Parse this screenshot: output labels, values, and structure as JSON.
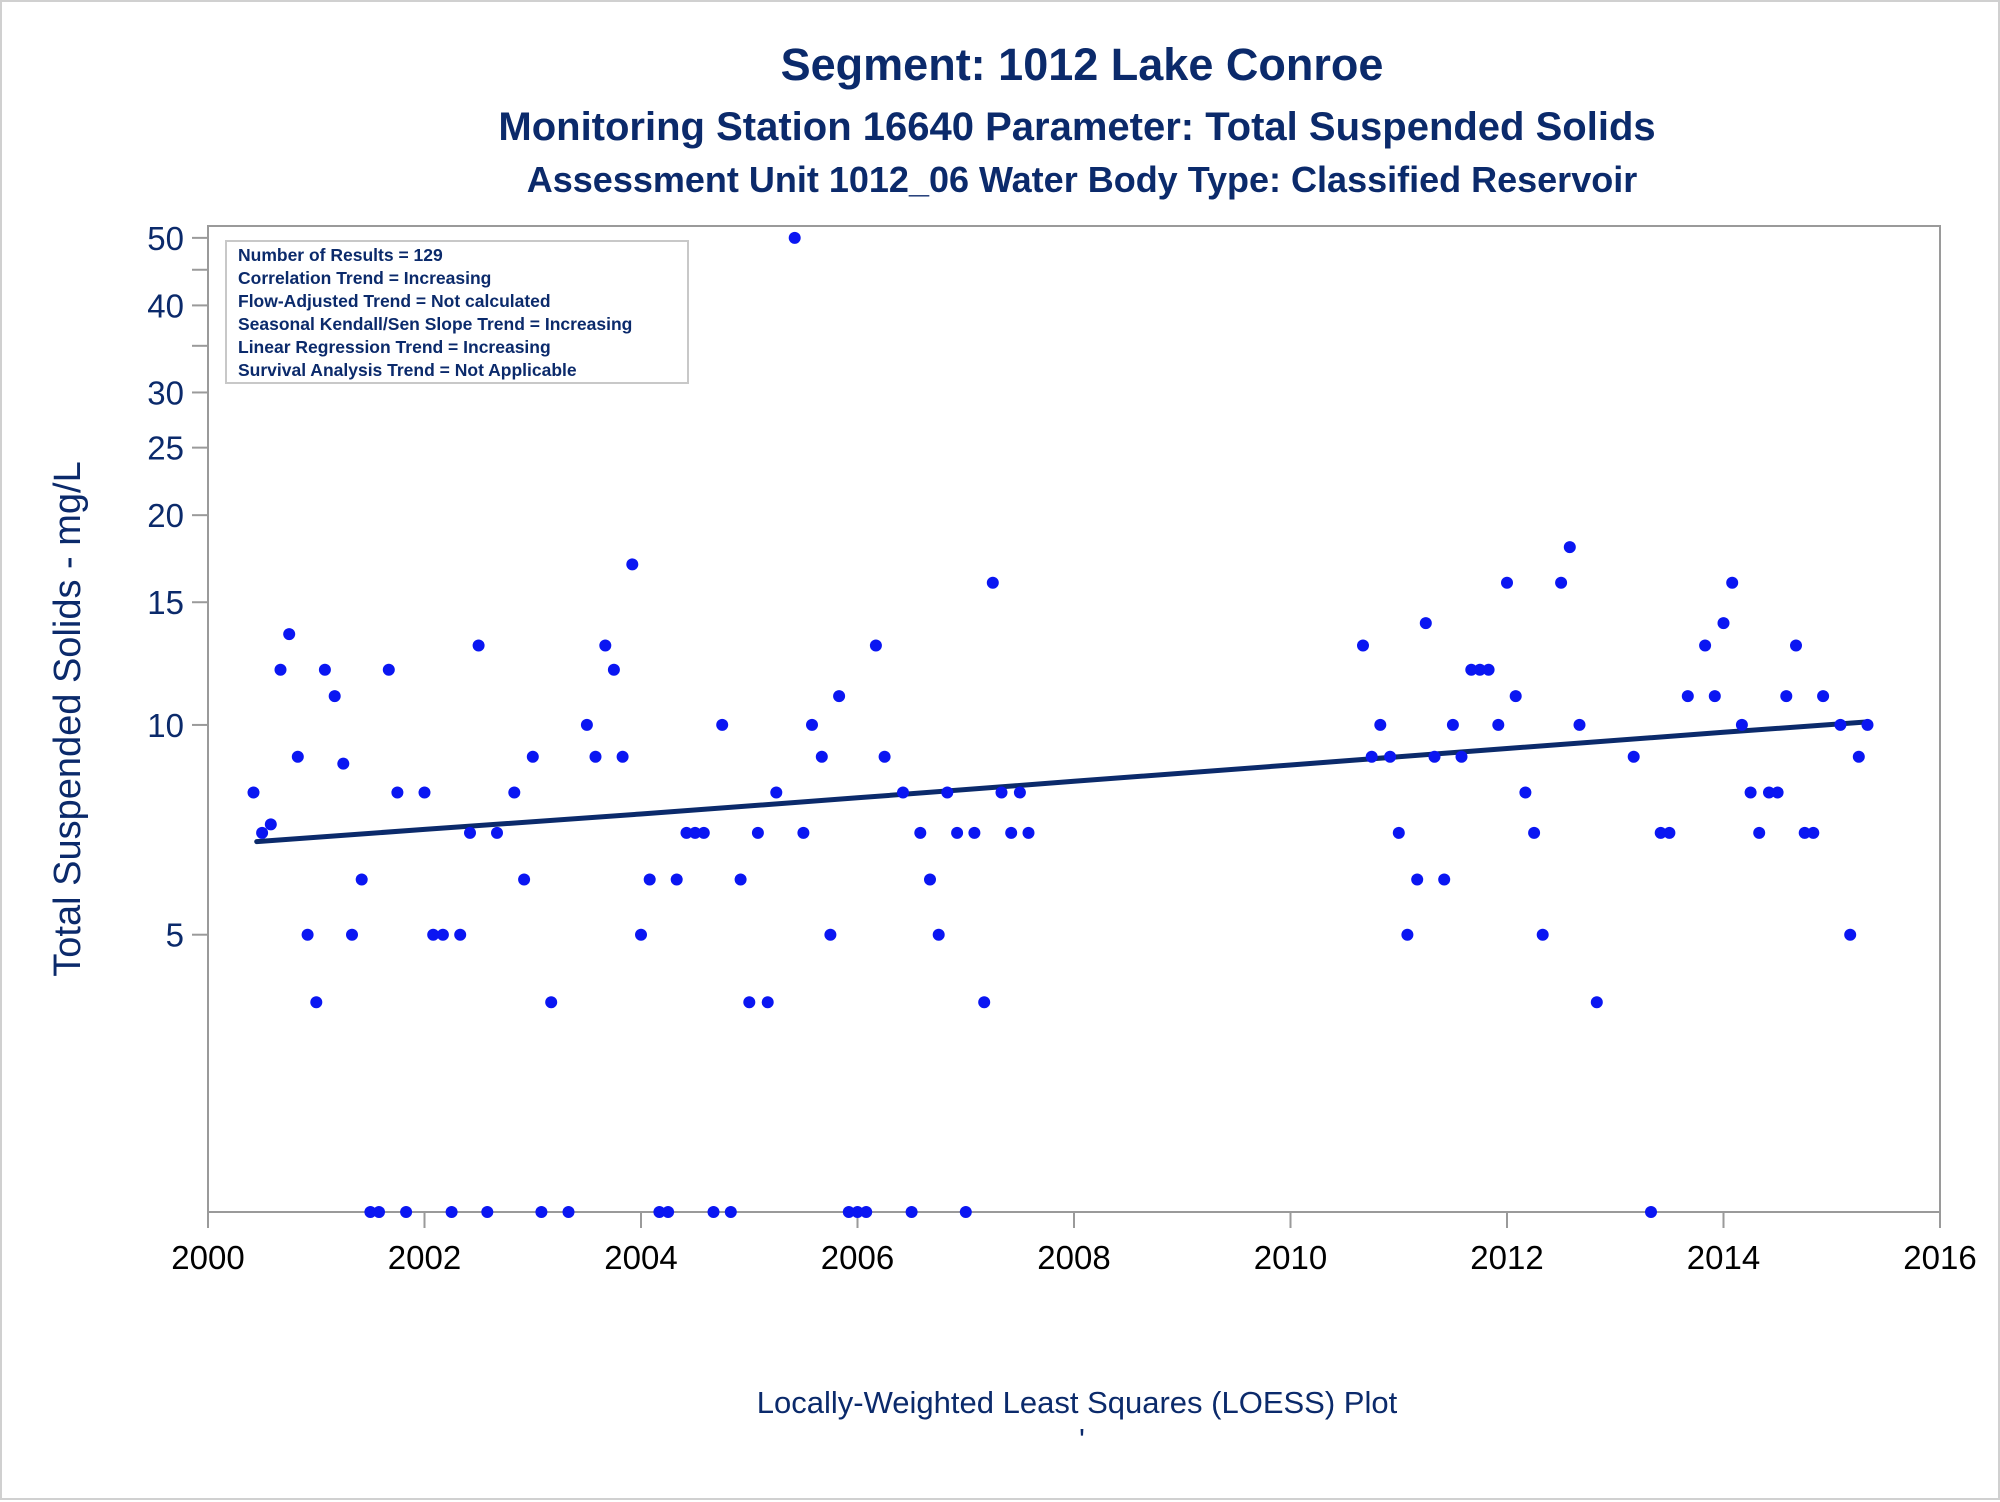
{
  "chart_data": {
    "type": "scatter",
    "title": "Segment: 1012  Lake Conroe",
    "subtitle": "Monitoring Station 16640 Parameter: Total Suspended Solids",
    "subtitle2": "Assessment Unit 1012_06   Water Body Type: Classified Reservoir",
    "xlabel": "",
    "ylabel": "Total Suspended Solids - mg/L",
    "footnote": "Locally-Weighted Least Squares (LOESS) Plot",
    "footnote_mark": "'",
    "y_scale": "log",
    "xlim": [
      2000,
      2016
    ],
    "ylim": [
      2,
      52
    ],
    "x_ticks": [
      2000,
      2002,
      2004,
      2006,
      2008,
      2010,
      2012,
      2014,
      2016
    ],
    "x_tick_labels": [
      "2000",
      "2002",
      "2004",
      "2006",
      "2008",
      "2010",
      "2012",
      "2014",
      "2016"
    ],
    "y_ticks": [
      5,
      10,
      15,
      20,
      25,
      30,
      40,
      50
    ],
    "y_tick_labels": [
      "5",
      "10",
      "15",
      "20",
      "25",
      "30",
      "40",
      "50"
    ],
    "y_minor_ticks": [
      35,
      45
    ],
    "grid": false,
    "legend_position": "top-left",
    "info_lines": [
      "Number of Results = 129",
      "Correlation Trend = Increasing",
      "Flow-Adjusted Trend = Not calculated",
      "Seasonal Kendall/Sen Slope Trend = Increasing",
      "Linear Regression Trend = Increasing",
      "Survival Analysis Trend = Not Applicable"
    ],
    "colors": {
      "points": "#0a16f2",
      "trend": "#0b2a6b",
      "text": "#0b2a6b",
      "axis": "#9a9a9a"
    },
    "series": [
      {
        "type": "scatter",
        "x": [
          2000.42,
          2000.5,
          2000.58,
          2000.67,
          2000.75,
          2000.83,
          2000.92,
          2001.0,
          2001.08,
          2001.17,
          2001.25,
          2001.33,
          2001.42,
          2001.5,
          2001.58,
          2001.67,
          2001.75,
          2001.83,
          2002.0,
          2002.08,
          2002.17,
          2002.25,
          2002.33,
          2002.42,
          2002.5,
          2002.58,
          2002.67,
          2002.83,
          2002.92,
          2003.0,
          2003.08,
          2003.17,
          2003.33,
          2003.5,
          2003.58,
          2003.67,
          2003.75,
          2003.83,
          2003.92,
          2004.0,
          2004.08,
          2004.17,
          2004.25,
          2004.33,
          2004.42,
          2004.5,
          2004.58,
          2004.67,
          2004.75,
          2004.83,
          2004.92,
          2005.0,
          2005.08,
          2005.17,
          2005.25,
          2005.42,
          2005.5,
          2005.58,
          2005.67,
          2005.75,
          2005.83,
          2005.92,
          2006.0,
          2006.08,
          2006.17,
          2006.25,
          2006.42,
          2006.5,
          2006.58,
          2006.67,
          2006.75,
          2006.83,
          2006.92,
          2007.0,
          2007.08,
          2007.17,
          2007.25,
          2007.33,
          2007.42,
          2007.5,
          2007.58,
          2010.67,
          2010.75,
          2010.83,
          2010.92,
          2011.0,
          2011.08,
          2011.17,
          2011.25,
          2011.33,
          2011.42,
          2011.5,
          2011.58,
          2011.67,
          2011.75,
          2011.83,
          2011.92,
          2012.0,
          2012.08,
          2012.17,
          2012.25,
          2012.33,
          2012.5,
          2012.58,
          2012.67,
          2012.83,
          2013.17,
          2013.33,
          2013.42,
          2013.5,
          2013.67,
          2013.83,
          2013.92,
          2014.0,
          2014.08,
          2014.17,
          2014.25,
          2014.33,
          2014.42,
          2014.5,
          2014.58,
          2014.67,
          2014.75,
          2014.83,
          2014.92,
          2015.08,
          2015.17,
          2015.25,
          2015.33
        ],
        "y": [
          8,
          7,
          7.2,
          12,
          13.5,
          9,
          5,
          4,
          12,
          11,
          8.8,
          5,
          6,
          2,
          2,
          12,
          8,
          2,
          8,
          5,
          5,
          2,
          5,
          7,
          13,
          2,
          7,
          8,
          6,
          9,
          2,
          4,
          2,
          10,
          9,
          13,
          12,
          9,
          17,
          5,
          6,
          2,
          2,
          6,
          7,
          7,
          7,
          2,
          10,
          2,
          6,
          4,
          7,
          4,
          8,
          50,
          7,
          10,
          9,
          5,
          11,
          2,
          2,
          2,
          13,
          9,
          8,
          2,
          7,
          6,
          5,
          8,
          7,
          2,
          7,
          4,
          16,
          8,
          7,
          8,
          7,
          13,
          9,
          10,
          9,
          7,
          5,
          6,
          14,
          9,
          6,
          10,
          9,
          12,
          12,
          12,
          10,
          16,
          11,
          8,
          7,
          5,
          16,
          18,
          10,
          4,
          9,
          2,
          7,
          7,
          11,
          13,
          11,
          14,
          16,
          10,
          8,
          7,
          8,
          8,
          11,
          13,
          7,
          7,
          11,
          10,
          5,
          9,
          10
        ]
      },
      {
        "type": "line",
        "name": "",
        "x": [
          2000.45,
          2002,
          2004,
          2006,
          2008,
          2010,
          2012,
          2014,
          2015.33
        ],
        "y": [
          6.8,
          7.08,
          7.45,
          7.86,
          8.3,
          8.76,
          9.25,
          9.76,
          10.1
        ]
      }
    ]
  }
}
